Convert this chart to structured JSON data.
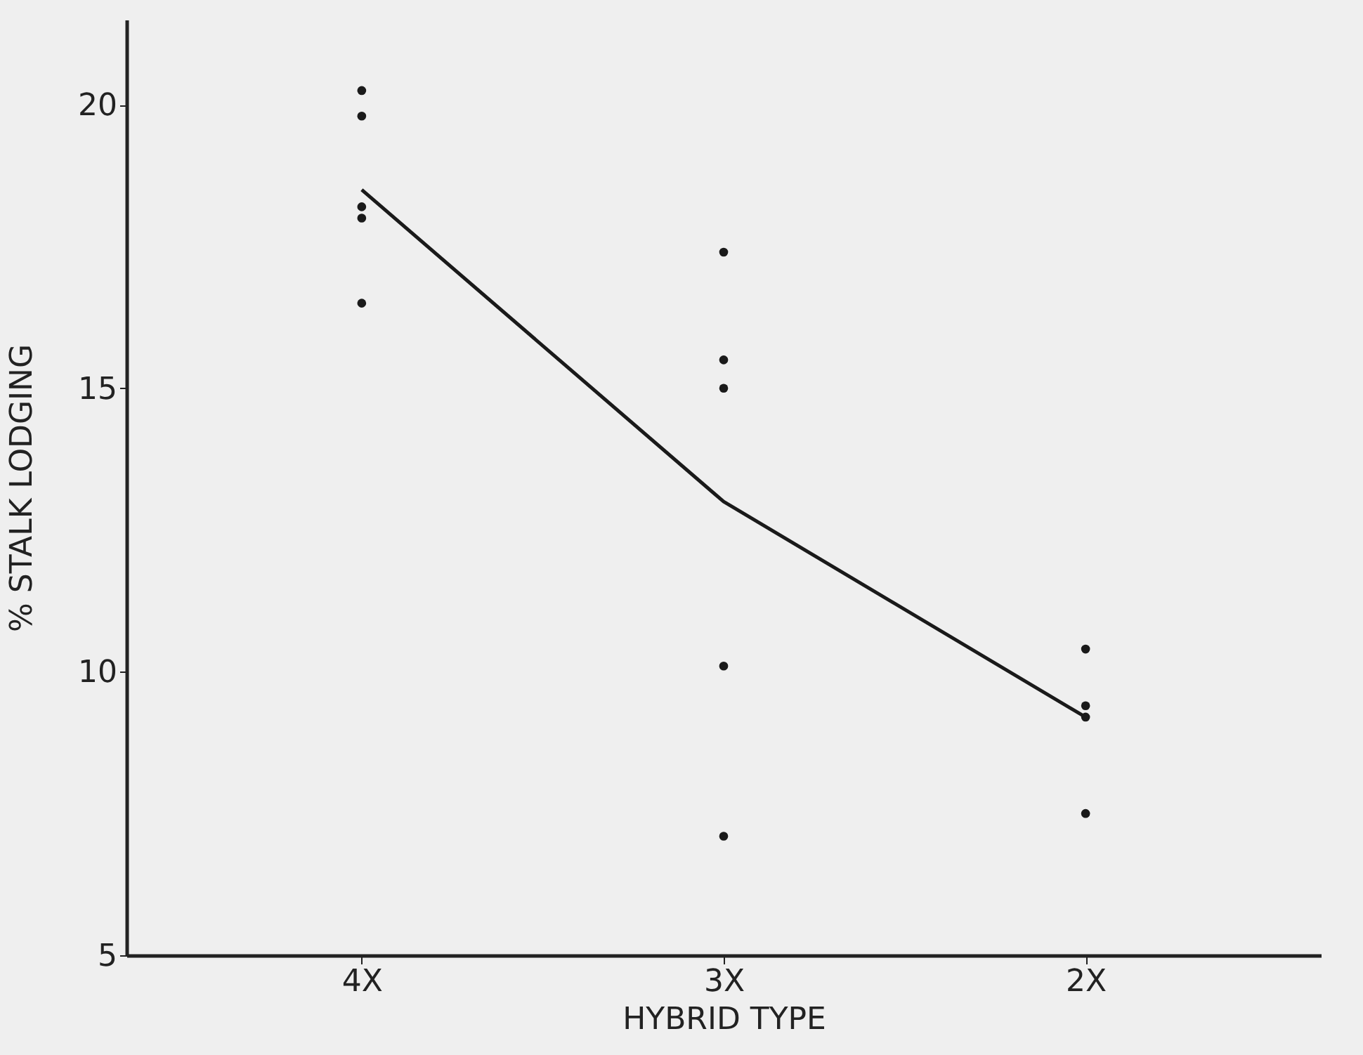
{
  "chart_data": {
    "type": "line",
    "xlabel": "HYBRID TYPE",
    "ylabel": "% STALK LODGING",
    "categories": [
      "4X",
      "3X",
      "2X"
    ],
    "ylim": [
      5,
      21.5
    ],
    "yticks": [
      5,
      10,
      15,
      20
    ],
    "grid": false,
    "series": [
      {
        "color": "#1a1a1a",
        "values": [
          18.5,
          13.0,
          9.2
        ]
      },
      {
        "type": "scatter",
        "color": "#1a1a1a",
        "x": [
          "4X",
          "4X",
          "4X",
          "4X",
          "4X",
          "3X",
          "3X",
          "3X",
          "3X",
          "3X",
          "2X",
          "2X",
          "2X",
          "2X"
        ],
        "values": [
          20.25,
          19.8,
          18.2,
          18.0,
          16.5,
          17.4,
          15.5,
          15.0,
          10.1,
          7.1,
          10.4,
          9.4,
          9.2,
          7.5
        ]
      }
    ]
  }
}
